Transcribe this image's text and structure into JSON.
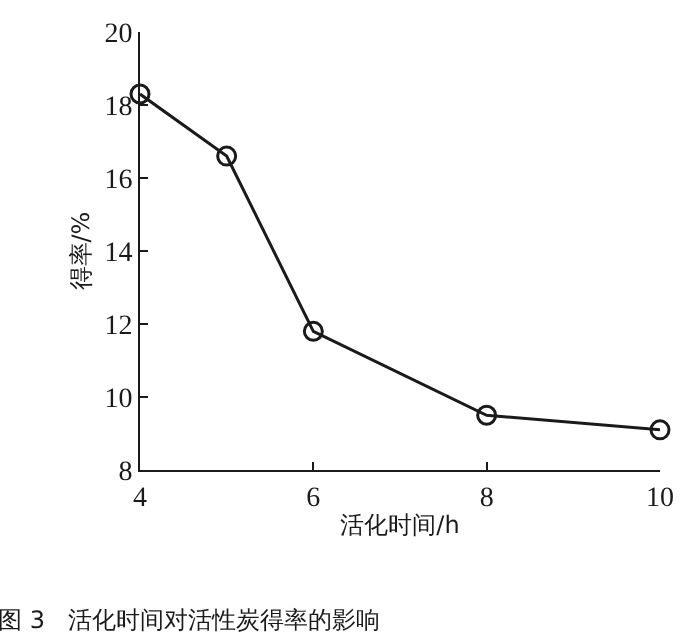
{
  "chart_data": {
    "type": "line",
    "xlabel": "活化时间/h",
    "ylabel": "得率/%",
    "x": [
      4,
      5,
      6,
      8,
      10
    ],
    "series": [
      {
        "color": "#1a1a1a",
        "values": [
          18.3,
          16.6,
          11.8,
          9.5,
          9.1
        ]
      }
    ],
    "xlim": [
      4,
      10
    ],
    "xticks": [
      4,
      6,
      8,
      10
    ],
    "ylim": [
      8,
      20
    ],
    "yticks": [
      8,
      10,
      12,
      14,
      16,
      18,
      20
    ],
    "marker": "circle",
    "line_style": "solid",
    "legend": false,
    "annotations": [
      "图 3   活化时间对活性炭得率的影响"
    ]
  }
}
